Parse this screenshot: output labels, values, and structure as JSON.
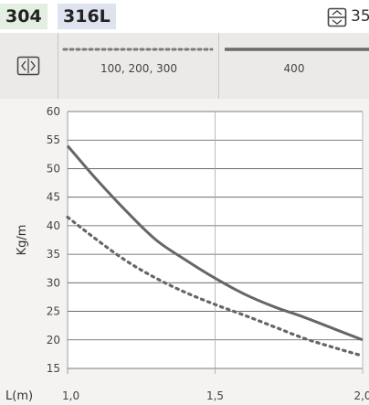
{
  "header": {
    "tag1": "304",
    "tag2": "316L",
    "right_icon": "wire-spacing-icon",
    "right_value": "35"
  },
  "legend": {
    "icon": "width-arrows-icon",
    "entries": [
      {
        "label": "100, 200, 300",
        "style": "dotted"
      },
      {
        "label": "400",
        "style": "solid"
      }
    ]
  },
  "colors": {
    "tag1_bg": "#e3efe0",
    "tag2_bg": "#dfe2ef",
    "line": "#666666",
    "band": "#eceae8"
  },
  "chart_data": {
    "type": "line",
    "xlabel": "L(m)",
    "ylabel": "Kg/m",
    "x_ticks": [
      "1,0",
      "1,5",
      "2,0"
    ],
    "y_ticks": [
      15,
      20,
      25,
      30,
      35,
      40,
      45,
      50,
      55,
      60
    ],
    "xlim": [
      1.0,
      2.0
    ],
    "ylim": [
      15,
      60
    ],
    "grid": true,
    "legend": "top",
    "series": [
      {
        "name": "100, 200, 300",
        "style": "dotted",
        "x": [
          1.0,
          1.1,
          1.2,
          1.3,
          1.4,
          1.5,
          1.6,
          1.7,
          1.8,
          1.9,
          2.0
        ],
        "y": [
          41.5,
          37.5,
          33.8,
          30.8,
          28.3,
          26.2,
          24.3,
          22.3,
          20.3,
          18.7,
          17.2
        ]
      },
      {
        "name": "400",
        "style": "solid",
        "x": [
          1.0,
          1.1,
          1.2,
          1.3,
          1.4,
          1.5,
          1.6,
          1.7,
          1.8,
          1.9,
          2.0
        ],
        "y": [
          54,
          48,
          42.5,
          37.5,
          34,
          30.8,
          28,
          25.8,
          24,
          22,
          20
        ]
      }
    ]
  }
}
